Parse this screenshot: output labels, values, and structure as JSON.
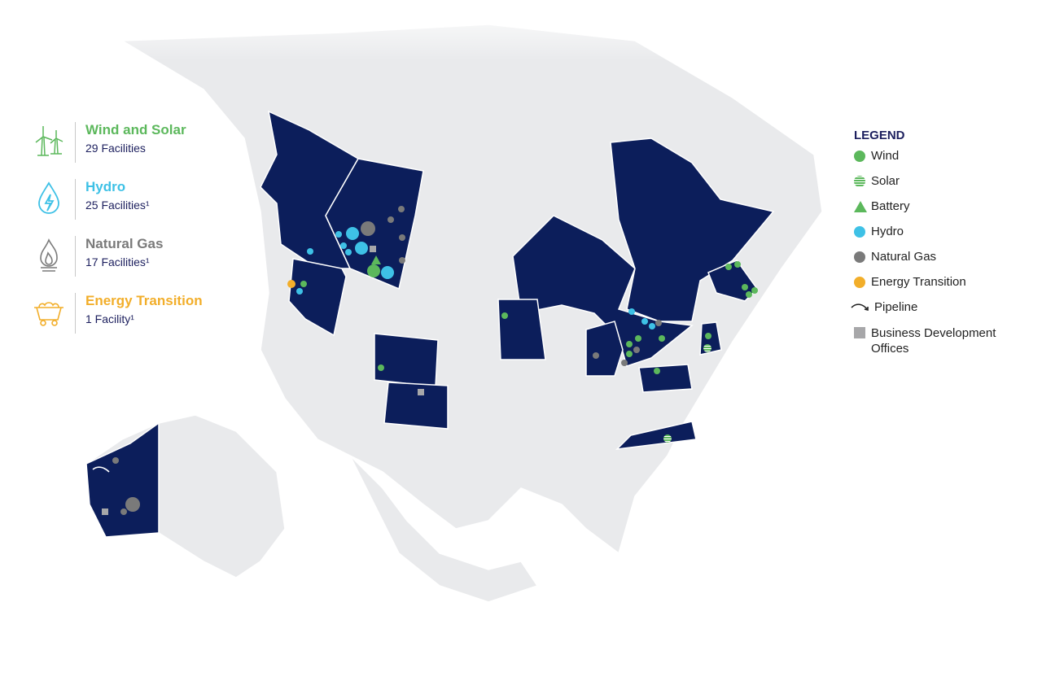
{
  "categories": [
    {
      "title": "Wind and Solar",
      "subtitle": "29 Facilities",
      "color": "#5cb85c",
      "icon": "wind-turbine-icon"
    },
    {
      "title": "Hydro",
      "subtitle": "25 Facilities¹",
      "color": "#3ec1e6",
      "icon": "water-drop-bolt-icon"
    },
    {
      "title": "Natural Gas",
      "subtitle": "17 Facilities¹",
      "color": "#7a7a7a",
      "icon": "gas-flame-icon"
    },
    {
      "title": "Energy Transition",
      "subtitle": "1 Facility¹",
      "color": "#f2ae2a",
      "icon": "mine-cart-icon"
    }
  ],
  "legend": {
    "title": "LEGEND",
    "items": [
      {
        "label": "Wind",
        "symbol": "circle",
        "color": "#5cb85c"
      },
      {
        "label": "Solar",
        "symbol": "striped-circle",
        "color": "#5cb85c"
      },
      {
        "label": "Battery",
        "symbol": "triangle",
        "color": "#5cb85c"
      },
      {
        "label": "Hydro",
        "symbol": "circle",
        "color": "#3ec1e6"
      },
      {
        "label": "Natural Gas",
        "symbol": "circle",
        "color": "#7a7a7a"
      },
      {
        "label": "Energy Transition",
        "symbol": "circle",
        "color": "#f2ae2a"
      },
      {
        "label": "Pipeline",
        "symbol": "arrow-curve",
        "color": "#222222"
      },
      {
        "label": "Business Development Offices",
        "symbol": "square",
        "color": "#a7a7a9"
      }
    ]
  },
  "colors": {
    "highlight_region": "#0c1e5b",
    "land": "#e9eaec",
    "border": "#ffffff"
  }
}
